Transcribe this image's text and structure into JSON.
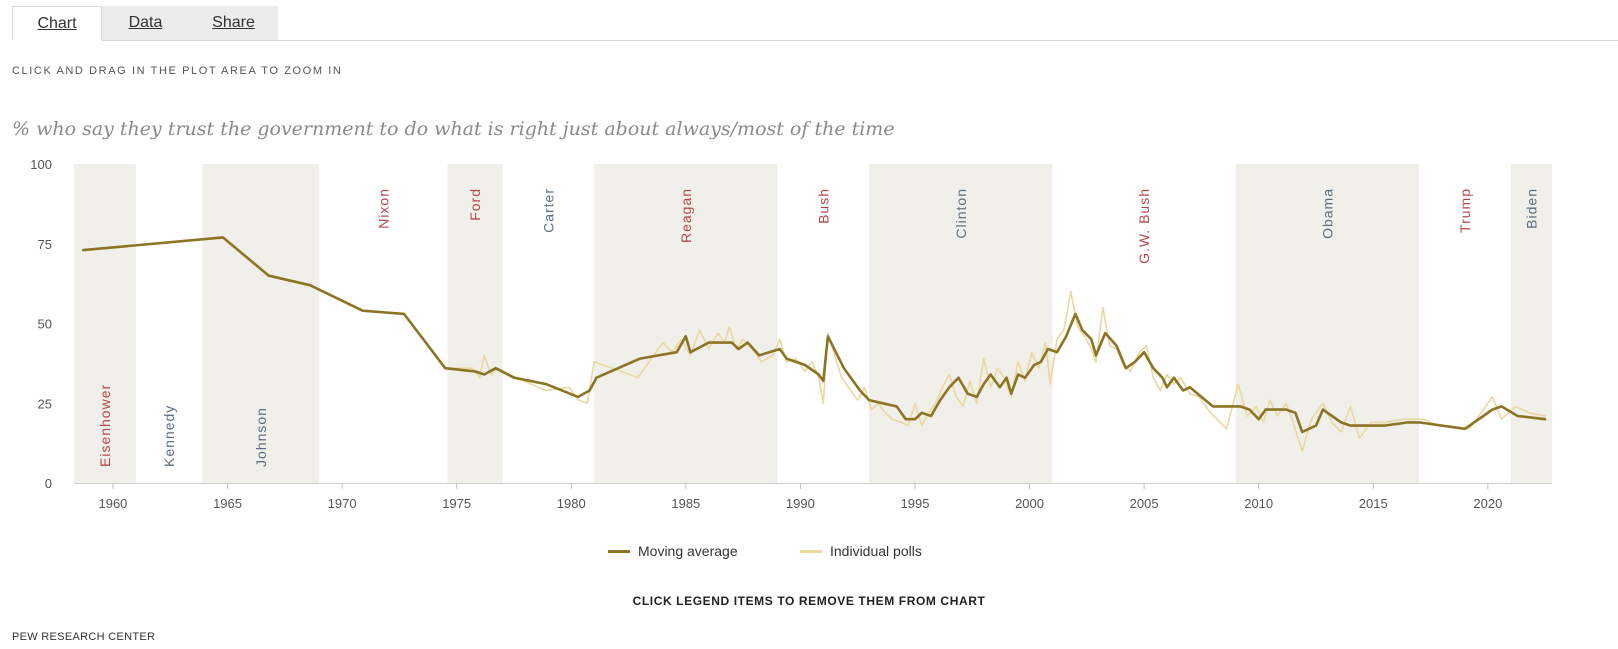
{
  "tabs": [
    {
      "label": "Chart",
      "active": true
    },
    {
      "label": "Data",
      "active": false
    },
    {
      "label": "Share",
      "active": false
    }
  ],
  "instruction": "CLICK AND DRAG IN THE PLOT AREA TO ZOOM IN",
  "legend_hint": "CLICK LEGEND ITEMS TO REMOVE THEM FROM CHART",
  "source": "PEW RESEARCH CENTER",
  "colors": {
    "moving_average": "#8c7425",
    "individual_polls": "#ead8a0",
    "shade": "#f0efe9",
    "republican_label": "#b5474a",
    "democrat_label": "#5d6e82"
  },
  "chart_data": {
    "type": "line",
    "title": "% who say they trust the government to do what is right just about always/most of the time",
    "xlim": [
      1958.3,
      2022.8
    ],
    "ylim": [
      0,
      100
    ],
    "yticks": [
      0,
      25,
      50,
      75,
      100
    ],
    "xticks": [
      1960,
      1965,
      1970,
      1975,
      1980,
      1985,
      1990,
      1995,
      2000,
      2005,
      2010,
      2015,
      2020
    ],
    "grid": false,
    "legend_position": "bottom",
    "presidents": [
      {
        "name": "Eisenhower",
        "start": 1958.3,
        "end": 1961.0,
        "party": "R",
        "shaded": true,
        "label_pos": "bottom"
      },
      {
        "name": "Kennedy",
        "start": 1961.0,
        "end": 1963.9,
        "party": "D",
        "shaded": false,
        "label_pos": "bottom"
      },
      {
        "name": "Johnson",
        "start": 1963.9,
        "end": 1969.0,
        "party": "D",
        "shaded": true,
        "label_pos": "bottom"
      },
      {
        "name": "Nixon",
        "start": 1969.0,
        "end": 1974.6,
        "party": "R",
        "shaded": false,
        "label_pos": "top"
      },
      {
        "name": "Ford",
        "start": 1974.6,
        "end": 1977.0,
        "party": "R",
        "shaded": true,
        "label_pos": "top"
      },
      {
        "name": "Carter",
        "start": 1977.0,
        "end": 1981.0,
        "party": "D",
        "shaded": false,
        "label_pos": "top"
      },
      {
        "name": "Reagan",
        "start": 1981.0,
        "end": 1989.0,
        "party": "R",
        "shaded": true,
        "label_pos": "top"
      },
      {
        "name": "Bush",
        "start": 1989.0,
        "end": 1993.0,
        "party": "R",
        "shaded": false,
        "label_pos": "top"
      },
      {
        "name": "Clinton",
        "start": 1993.0,
        "end": 2001.0,
        "party": "D",
        "shaded": true,
        "label_pos": "top"
      },
      {
        "name": "G.W. Bush",
        "start": 2001.0,
        "end": 2009.0,
        "party": "R",
        "shaded": false,
        "label_pos": "top"
      },
      {
        "name": "Obama",
        "start": 2009.0,
        "end": 2017.0,
        "party": "D",
        "shaded": true,
        "label_pos": "top"
      },
      {
        "name": "Trump",
        "start": 2017.0,
        "end": 2021.0,
        "party": "R",
        "shaded": false,
        "label_pos": "top"
      },
      {
        "name": "Biden",
        "start": 2021.0,
        "end": 2022.8,
        "party": "D",
        "shaded": true,
        "label_pos": "top"
      }
    ],
    "series": [
      {
        "name": "Moving average",
        "points": [
          [
            1958.7,
            73
          ],
          [
            1964.8,
            77
          ],
          [
            1966.8,
            65
          ],
          [
            1968.6,
            62
          ],
          [
            1970.9,
            54
          ],
          [
            1972.7,
            53
          ],
          [
            1974.5,
            36
          ],
          [
            1975.8,
            35
          ],
          [
            1976.2,
            34
          ],
          [
            1976.7,
            36
          ],
          [
            1977.5,
            33
          ],
          [
            1978.9,
            31
          ],
          [
            1980.3,
            27
          ],
          [
            1980.8,
            29
          ],
          [
            1981.1,
            33
          ],
          [
            1983.0,
            39
          ],
          [
            1984.6,
            41
          ],
          [
            1985.0,
            46
          ],
          [
            1985.2,
            41
          ],
          [
            1986.0,
            44
          ],
          [
            1986.5,
            44
          ],
          [
            1987.0,
            44
          ],
          [
            1987.3,
            42
          ],
          [
            1987.7,
            44
          ],
          [
            1988.2,
            40
          ],
          [
            1989.1,
            42
          ],
          [
            1989.4,
            39
          ],
          [
            1990.2,
            37
          ],
          [
            1990.8,
            34
          ],
          [
            1991.0,
            32
          ],
          [
            1991.2,
            46
          ],
          [
            1991.9,
            36
          ],
          [
            1992.6,
            29
          ],
          [
            1993.0,
            26
          ],
          [
            1993.6,
            25
          ],
          [
            1994.2,
            24
          ],
          [
            1994.6,
            20
          ],
          [
            1995.0,
            20
          ],
          [
            1995.3,
            22
          ],
          [
            1995.7,
            21
          ],
          [
            1996.1,
            26
          ],
          [
            1996.5,
            30
          ],
          [
            1996.9,
            33
          ],
          [
            1997.3,
            28
          ],
          [
            1997.7,
            27
          ],
          [
            1998.0,
            31
          ],
          [
            1998.3,
            34
          ],
          [
            1998.7,
            30
          ],
          [
            1999.0,
            33
          ],
          [
            1999.2,
            28
          ],
          [
            1999.5,
            34
          ],
          [
            1999.8,
            33
          ],
          [
            2000.2,
            37
          ],
          [
            2000.5,
            38
          ],
          [
            2000.8,
            42
          ],
          [
            2001.2,
            41
          ],
          [
            2001.6,
            46
          ],
          [
            2002.0,
            53
          ],
          [
            2002.3,
            48
          ],
          [
            2002.7,
            45
          ],
          [
            2002.9,
            40
          ],
          [
            2003.3,
            47
          ],
          [
            2003.8,
            43
          ],
          [
            2004.2,
            36
          ],
          [
            2004.6,
            38
          ],
          [
            2005.0,
            41
          ],
          [
            2005.4,
            36
          ],
          [
            2005.8,
            33
          ],
          [
            2006.0,
            30
          ],
          [
            2006.3,
            33
          ],
          [
            2006.7,
            29
          ],
          [
            2007.0,
            30
          ],
          [
            2007.5,
            27
          ],
          [
            2008.0,
            24
          ],
          [
            2009.2,
            24
          ],
          [
            2009.6,
            23
          ],
          [
            2010.0,
            20
          ],
          [
            2010.3,
            23
          ],
          [
            2010.7,
            23
          ],
          [
            2011.2,
            23
          ],
          [
            2011.6,
            22
          ],
          [
            2011.9,
            16
          ],
          [
            2012.5,
            18
          ],
          [
            2012.8,
            23
          ],
          [
            2013.2,
            21
          ],
          [
            2013.6,
            19
          ],
          [
            2014.0,
            18
          ],
          [
            2014.5,
            18
          ],
          [
            2015.5,
            18
          ],
          [
            2016.5,
            19
          ],
          [
            2017.0,
            19
          ],
          [
            2019.0,
            17
          ],
          [
            2019.8,
            21
          ],
          [
            2020.2,
            23
          ],
          [
            2020.6,
            24
          ],
          [
            2021.3,
            21
          ],
          [
            2022.5,
            20
          ]
        ]
      },
      {
        "name": "Individual polls",
        "points": [
          [
            1958.7,
            73
          ],
          [
            1964.8,
            77
          ],
          [
            1966.8,
            65
          ],
          [
            1968.6,
            62
          ],
          [
            1970.9,
            54
          ],
          [
            1972.7,
            53
          ],
          [
            1974.5,
            36
          ],
          [
            1975.7,
            36
          ],
          [
            1976.0,
            33
          ],
          [
            1976.2,
            40
          ],
          [
            1976.5,
            34
          ],
          [
            1976.8,
            36
          ],
          [
            1977.6,
            33
          ],
          [
            1978.9,
            29
          ],
          [
            1979.9,
            30
          ],
          [
            1980.3,
            26
          ],
          [
            1980.7,
            25
          ],
          [
            1981.0,
            38
          ],
          [
            1981.8,
            36
          ],
          [
            1982.9,
            33
          ],
          [
            1984.0,
            44
          ],
          [
            1984.4,
            41
          ],
          [
            1984.8,
            45
          ],
          [
            1985.2,
            40
          ],
          [
            1985.6,
            48
          ],
          [
            1986.0,
            42
          ],
          [
            1986.4,
            47
          ],
          [
            1986.7,
            44
          ],
          [
            1986.9,
            49
          ],
          [
            1987.2,
            42
          ],
          [
            1987.5,
            45
          ],
          [
            1987.9,
            42
          ],
          [
            1988.3,
            38
          ],
          [
            1988.8,
            40
          ],
          [
            1989.1,
            45
          ],
          [
            1989.4,
            38
          ],
          [
            1989.8,
            39
          ],
          [
            1990.2,
            35
          ],
          [
            1990.5,
            38
          ],
          [
            1990.8,
            33
          ],
          [
            1991.0,
            25
          ],
          [
            1991.2,
            47
          ],
          [
            1991.5,
            40
          ],
          [
            1991.8,
            33
          ],
          [
            1992.1,
            30
          ],
          [
            1992.5,
            26
          ],
          [
            1992.8,
            30
          ],
          [
            1993.1,
            23
          ],
          [
            1993.4,
            25
          ],
          [
            1993.7,
            22
          ],
          [
            1994.0,
            20
          ],
          [
            1994.4,
            19
          ],
          [
            1994.7,
            18
          ],
          [
            1995.0,
            25
          ],
          [
            1995.3,
            18
          ],
          [
            1995.6,
            22
          ],
          [
            1995.9,
            25
          ],
          [
            1996.2,
            30
          ],
          [
            1996.5,
            34
          ],
          [
            1996.8,
            27
          ],
          [
            1997.1,
            24
          ],
          [
            1997.4,
            32
          ],
          [
            1997.7,
            25
          ],
          [
            1998.0,
            39
          ],
          [
            1998.3,
            30
          ],
          [
            1998.6,
            36
          ],
          [
            1998.9,
            33
          ],
          [
            1999.2,
            27
          ],
          [
            1999.5,
            38
          ],
          [
            1999.8,
            32
          ],
          [
            2000.1,
            41
          ],
          [
            2000.4,
            36
          ],
          [
            2000.7,
            44
          ],
          [
            2000.9,
            31
          ],
          [
            2001.2,
            45
          ],
          [
            2001.5,
            48
          ],
          [
            2001.8,
            60
          ],
          [
            2002.1,
            49
          ],
          [
            2002.4,
            46
          ],
          [
            2002.7,
            42
          ],
          [
            2002.9,
            38
          ],
          [
            2003.2,
            55
          ],
          [
            2003.5,
            43
          ],
          [
            2003.8,
            42
          ],
          [
            2004.1,
            37
          ],
          [
            2004.4,
            35
          ],
          [
            2004.8,
            41
          ],
          [
            2005.1,
            43
          ],
          [
            2005.4,
            33
          ],
          [
            2005.7,
            29
          ],
          [
            2006.0,
            34
          ],
          [
            2006.3,
            31
          ],
          [
            2006.6,
            33
          ],
          [
            2007.0,
            28
          ],
          [
            2007.4,
            27
          ],
          [
            2007.9,
            22
          ],
          [
            2008.6,
            17
          ],
          [
            2009.1,
            31
          ],
          [
            2009.5,
            21
          ],
          [
            2009.9,
            24
          ],
          [
            2010.2,
            19
          ],
          [
            2010.5,
            26
          ],
          [
            2010.8,
            21
          ],
          [
            2011.2,
            25
          ],
          [
            2011.5,
            19
          ],
          [
            2011.9,
            10
          ],
          [
            2012.3,
            20
          ],
          [
            2012.8,
            25
          ],
          [
            2013.2,
            19
          ],
          [
            2013.6,
            16
          ],
          [
            2014.0,
            24
          ],
          [
            2014.4,
            14
          ],
          [
            2014.9,
            19
          ],
          [
            2015.5,
            19
          ],
          [
            2016.3,
            20
          ],
          [
            2017.2,
            20
          ],
          [
            2017.8,
            18
          ],
          [
            2019.2,
            17
          ],
          [
            2019.7,
            22
          ],
          [
            2020.2,
            27
          ],
          [
            2020.6,
            20
          ],
          [
            2021.2,
            24
          ],
          [
            2021.8,
            22
          ],
          [
            2022.5,
            21
          ]
        ]
      }
    ]
  }
}
